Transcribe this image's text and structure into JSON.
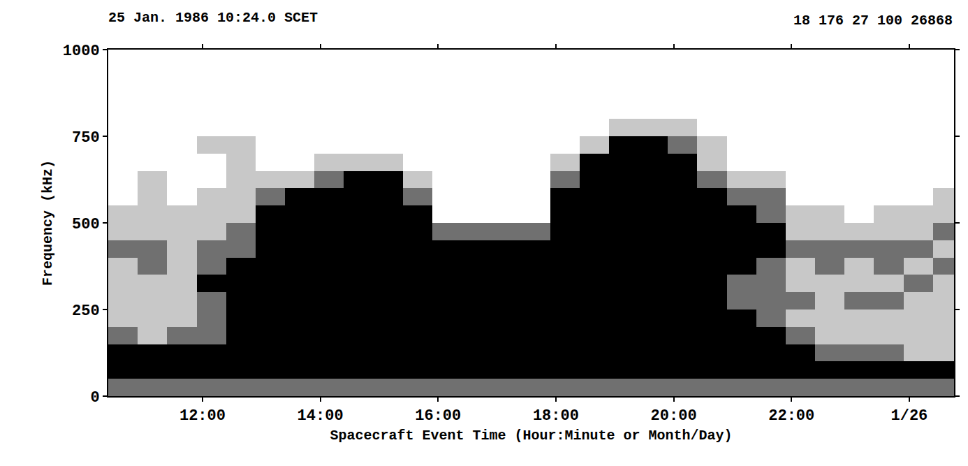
{
  "chart_data": {
    "type": "heatmap",
    "title": "25 Jan. 1986 10:24.0 SCET",
    "annotations": [
      "18 176 27 100 26868"
    ],
    "x_label": "Spacecraft Event Time (Hour:Minute or Month/Day)",
    "y_label": "Frequency (kHz)",
    "xlim": [
      10.4,
      24.76
    ],
    "xticks": [
      {
        "value": 12,
        "label": "12:00"
      },
      {
        "value": 14,
        "label": "14:00"
      },
      {
        "value": 16,
        "label": "16:00"
      },
      {
        "value": 18,
        "label": "18:00"
      },
      {
        "value": 20,
        "label": "20:00"
      },
      {
        "value": 22,
        "label": "22:00"
      },
      {
        "value": 24,
        "label": "1/26"
      }
    ],
    "ylim": [
      0,
      1000
    ],
    "yticks": [
      0,
      250,
      500,
      750,
      1000
    ],
    "grid": false,
    "colors": [
      "#ffffff",
      "#c8c8c8",
      "#707070",
      "#000000"
    ],
    "zlim": [
      0,
      3
    ],
    "x": [
      10.65,
      11.15,
      11.65,
      12.15,
      12.65,
      13.15,
      13.65,
      14.15,
      14.65,
      15.15,
      15.65,
      16.15,
      16.65,
      17.15,
      17.65,
      18.15,
      18.65,
      19.15,
      19.65,
      20.15,
      20.65,
      21.15,
      21.65,
      22.15,
      22.65,
      23.15,
      23.65,
      24.15,
      24.65
    ],
    "y": [
      25,
      75,
      125,
      175,
      225,
      275,
      325,
      375,
      425,
      475,
      525,
      575,
      625,
      675,
      725,
      775,
      825,
      875,
      925,
      975
    ],
    "z": [
      [
        2,
        3,
        3,
        2,
        1,
        1,
        1,
        1,
        2,
        1,
        1,
        0,
        0,
        0,
        0,
        0,
        0,
        0,
        0,
        0
      ],
      [
        2,
        3,
        3,
        1,
        1,
        1,
        1,
        2,
        2,
        1,
        1,
        1,
        1,
        0,
        0,
        0,
        0,
        0,
        0,
        0
      ],
      [
        2,
        3,
        3,
        2,
        1,
        1,
        1,
        1,
        1,
        1,
        1,
        0,
        0,
        0,
        0,
        0,
        0,
        0,
        0,
        0
      ],
      [
        2,
        3,
        3,
        2,
        2,
        2,
        3,
        2,
        2,
        1,
        1,
        1,
        0,
        0,
        1,
        0,
        0,
        0,
        0,
        0
      ],
      [
        2,
        3,
        3,
        3,
        3,
        3,
        3,
        3,
        2,
        2,
        1,
        1,
        1,
        1,
        1,
        0,
        0,
        0,
        0,
        0
      ],
      [
        2,
        3,
        3,
        3,
        3,
        3,
        3,
        3,
        3,
        3,
        3,
        2,
        1,
        0,
        0,
        0,
        0,
        0,
        0,
        0
      ],
      [
        2,
        3,
        3,
        3,
        3,
        3,
        3,
        3,
        3,
        3,
        3,
        3,
        1,
        0,
        0,
        0,
        0,
        0,
        0,
        0
      ],
      [
        2,
        3,
        3,
        3,
        3,
        3,
        3,
        3,
        3,
        3,
        3,
        3,
        2,
        1,
        0,
        0,
        0,
        0,
        0,
        0
      ],
      [
        2,
        3,
        3,
        3,
        3,
        3,
        3,
        3,
        3,
        3,
        3,
        3,
        3,
        1,
        0,
        0,
        0,
        0,
        0,
        0
      ],
      [
        2,
        3,
        3,
        3,
        3,
        3,
        3,
        3,
        3,
        3,
        3,
        3,
        3,
        1,
        0,
        0,
        0,
        0,
        0,
        0
      ],
      [
        2,
        3,
        3,
        3,
        3,
        3,
        3,
        3,
        3,
        3,
        3,
        2,
        1,
        0,
        0,
        0,
        0,
        0,
        0,
        0
      ],
      [
        2,
        3,
        3,
        3,
        3,
        3,
        3,
        3,
        3,
        2,
        0,
        0,
        0,
        0,
        0,
        0,
        0,
        0,
        0,
        0
      ],
      [
        2,
        3,
        3,
        3,
        3,
        3,
        3,
        3,
        3,
        2,
        0,
        0,
        0,
        0,
        0,
        0,
        0,
        0,
        0,
        0
      ],
      [
        2,
        3,
        3,
        3,
        3,
        3,
        3,
        3,
        3,
        2,
        0,
        0,
        0,
        0,
        0,
        0,
        0,
        0,
        0,
        0
      ],
      [
        2,
        3,
        3,
        3,
        3,
        3,
        3,
        3,
        3,
        2,
        0,
        0,
        0,
        0,
        0,
        0,
        0,
        0,
        0,
        0
      ],
      [
        2,
        3,
        3,
        3,
        3,
        3,
        3,
        3,
        3,
        3,
        3,
        3,
        2,
        1,
        0,
        0,
        0,
        0,
        0,
        0
      ],
      [
        2,
        3,
        3,
        3,
        3,
        3,
        3,
        3,
        3,
        3,
        3,
        3,
        3,
        3,
        1,
        0,
        0,
        0,
        0,
        0
      ],
      [
        2,
        3,
        3,
        3,
        3,
        3,
        3,
        3,
        3,
        3,
        3,
        3,
        3,
        3,
        3,
        1,
        0,
        0,
        0,
        0
      ],
      [
        2,
        3,
        3,
        3,
        3,
        3,
        3,
        3,
        3,
        3,
        3,
        3,
        3,
        3,
        3,
        1,
        0,
        0,
        0,
        0
      ],
      [
        2,
        3,
        3,
        3,
        3,
        3,
        3,
        3,
        3,
        3,
        3,
        3,
        3,
        3,
        2,
        1,
        0,
        0,
        0,
        0
      ],
      [
        2,
        3,
        3,
        3,
        3,
        3,
        3,
        3,
        3,
        3,
        3,
        3,
        2,
        1,
        1,
        0,
        0,
        0,
        0,
        0
      ],
      [
        2,
        3,
        3,
        3,
        3,
        2,
        2,
        3,
        3,
        3,
        3,
        2,
        1,
        0,
        0,
        0,
        0,
        0,
        0,
        0
      ],
      [
        2,
        3,
        3,
        3,
        2,
        2,
        2,
        2,
        3,
        3,
        2,
        2,
        1,
        0,
        0,
        0,
        0,
        0,
        0,
        0
      ],
      [
        2,
        3,
        3,
        2,
        1,
        2,
        1,
        1,
        2,
        1,
        1,
        0,
        0,
        0,
        0,
        0,
        0,
        0,
        0,
        0
      ],
      [
        2,
        3,
        2,
        1,
        1,
        1,
        1,
        2,
        2,
        1,
        1,
        0,
        0,
        0,
        0,
        0,
        0,
        0,
        0,
        0
      ],
      [
        2,
        3,
        2,
        1,
        1,
        2,
        1,
        1,
        2,
        1,
        0,
        0,
        0,
        0,
        0,
        0,
        0,
        0,
        0,
        0
      ],
      [
        2,
        3,
        2,
        1,
        1,
        2,
        1,
        2,
        2,
        1,
        1,
        0,
        0,
        0,
        0,
        0,
        0,
        0,
        0,
        0
      ],
      [
        2,
        3,
        1,
        1,
        1,
        1,
        2,
        1,
        2,
        1,
        1,
        0,
        0,
        0,
        0,
        0,
        0,
        0,
        0,
        0
      ],
      [
        2,
        3,
        1,
        1,
        1,
        1,
        1,
        2,
        1,
        2,
        1,
        1,
        0,
        0,
        0,
        0,
        0,
        0,
        0,
        0
      ]
    ]
  }
}
